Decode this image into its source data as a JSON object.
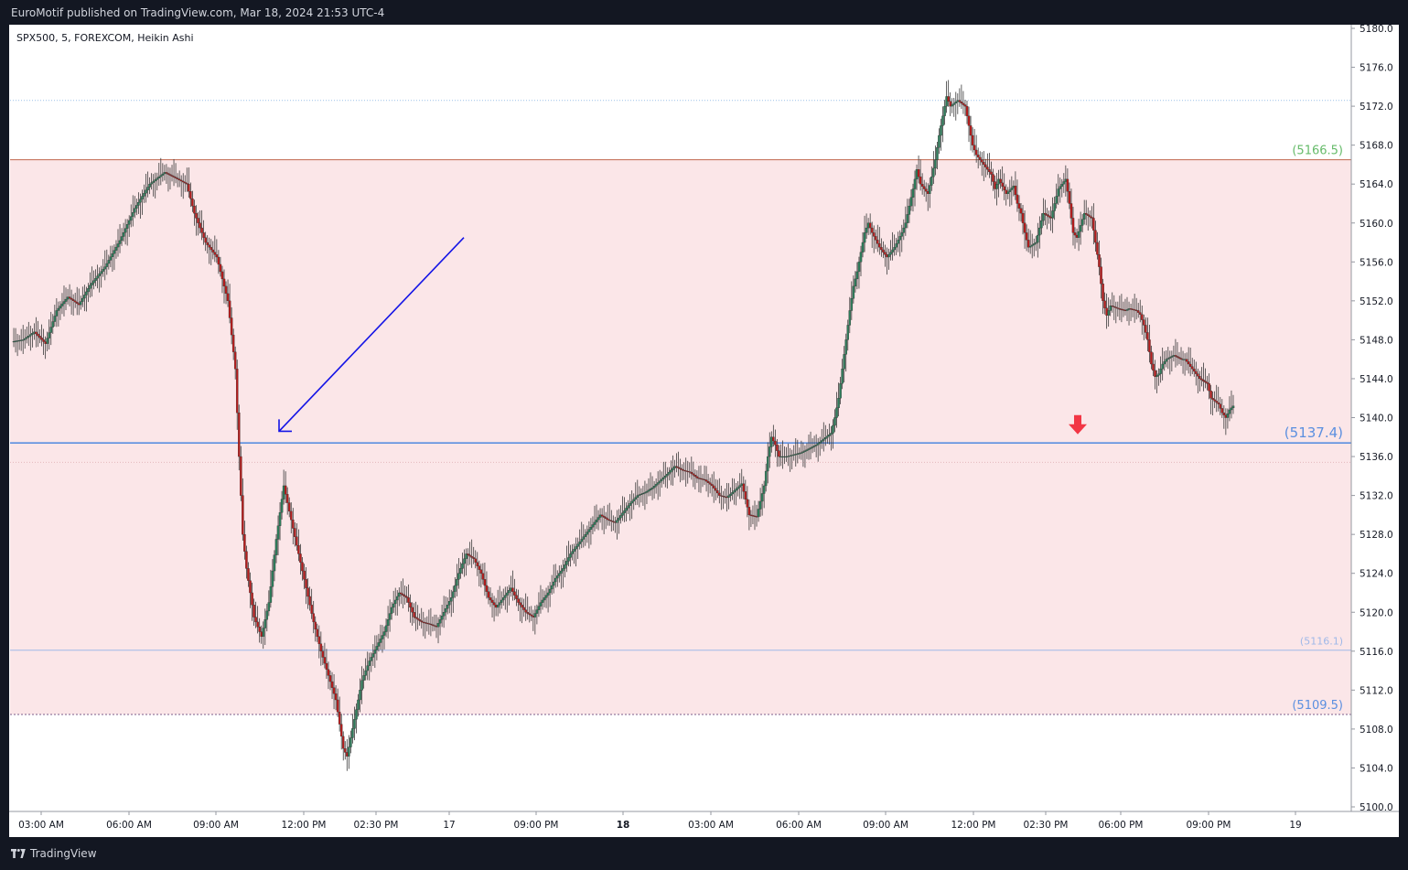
{
  "header": {
    "published_text": "EuroMotif published on TradingView.com, Mar 18, 2024 21:53 UTC-4"
  },
  "chart": {
    "symbol_label": "SPX500, 5, FOREXCOM, Heikin Ashi"
  },
  "footer": {
    "brand_name": "TradingView",
    "brand_icon": "tradingview-logo-icon"
  },
  "colors": {
    "up": "#26a69a",
    "up_body": "#2e7d5b",
    "down": "#ef5350",
    "down_body": "#b71c1c",
    "zone_fill": "#fbe6e8",
    "level_blue": "#5b8fe0",
    "level_green": "#66bb6a",
    "arrow_blue": "#1414e6",
    "marker_red": "#f23645",
    "background_dark": "#131722"
  },
  "chart_data": {
    "type": "candlestick",
    "subtype": "Heikin Ashi",
    "ylim": [
      5100,
      5180
    ],
    "yticks": [
      "5180.0",
      "5176.0",
      "5172.0",
      "5168.0",
      "5164.0",
      "5160.0",
      "5156.0",
      "5152.0",
      "5148.0",
      "5144.0",
      "5140.0",
      "5136.0",
      "5132.0",
      "5128.0",
      "5124.0",
      "5120.0",
      "5116.0",
      "5112.0",
      "5108.0",
      "5104.0",
      "5100.0"
    ],
    "xticks": [
      {
        "label": "03:00 AM",
        "bold": false
      },
      {
        "label": "06:00 AM",
        "bold": false
      },
      {
        "label": "09:00 AM",
        "bold": false
      },
      {
        "label": "12:00 PM",
        "bold": false
      },
      {
        "label": "02:30 PM",
        "bold": false
      },
      {
        "label": "17",
        "bold": false
      },
      {
        "label": "09:00 PM",
        "bold": false
      },
      {
        "label": "18",
        "bold": true
      },
      {
        "label": "03:00 AM",
        "bold": false
      },
      {
        "label": "06:00 AM",
        "bold": false
      },
      {
        "label": "09:00 AM",
        "bold": false
      },
      {
        "label": "12:00 PM",
        "bold": false
      },
      {
        "label": "02:30 PM",
        "bold": false
      },
      {
        "label": "06:00 PM",
        "bold": false
      },
      {
        "label": "09:00 PM",
        "bold": false
      },
      {
        "label": "19",
        "bold": false
      }
    ],
    "zone": {
      "top": 5166.5,
      "bottom": 5109.5
    },
    "levels": [
      {
        "price": 5166.5,
        "label": "(5166.5)",
        "color": "#66bb6a",
        "style": "solid-thin"
      },
      {
        "price": 5137.4,
        "label": "(5137.4)",
        "color": "#5b8fe0",
        "style": "solid"
      },
      {
        "price": 5116.1,
        "label": "(5116.1)",
        "color": "#9fb8e8",
        "style": "solid-thin"
      },
      {
        "price": 5109.5,
        "label": "(5109.5)",
        "color": "#5b8fe0",
        "style": "dotted"
      }
    ],
    "reference_lines": [
      5172.6,
      5135.4
    ],
    "price_path": [
      [
        0,
        5147.8
      ],
      [
        6,
        5148.0
      ],
      [
        12,
        5148.8
      ],
      [
        18,
        5147.6
      ],
      [
        24,
        5151.0
      ],
      [
        30,
        5152.4
      ],
      [
        36,
        5151.6
      ],
      [
        42,
        5153.6
      ],
      [
        50,
        5155.5
      ],
      [
        58,
        5158.2
      ],
      [
        66,
        5161.5
      ],
      [
        74,
        5164.0
      ],
      [
        82,
        5165.2
      ],
      [
        88,
        5164.6
      ],
      [
        94,
        5164.0
      ],
      [
        98,
        5161.0
      ],
      [
        104,
        5158.0
      ],
      [
        110,
        5156.5
      ],
      [
        116,
        5152.0
      ],
      [
        120,
        5145.0
      ],
      [
        122,
        5136.0
      ],
      [
        124,
        5128.0
      ],
      [
        126,
        5124.5
      ],
      [
        130,
        5119.5
      ],
      [
        134,
        5117.5
      ],
      [
        138,
        5121.0
      ],
      [
        142,
        5127.5
      ],
      [
        146,
        5133.0
      ],
      [
        150,
        5129.5
      ],
      [
        154,
        5126.0
      ],
      [
        158,
        5122.5
      ],
      [
        162,
        5119.0
      ],
      [
        166,
        5116.0
      ],
      [
        170,
        5113.5
      ],
      [
        174,
        5111.0
      ],
      [
        178,
        5106.0
      ],
      [
        180,
        5105.2
      ],
      [
        184,
        5109.0
      ],
      [
        188,
        5113.0
      ],
      [
        192,
        5115.0
      ],
      [
        196,
        5116.5
      ],
      [
        200,
        5118.0
      ],
      [
        204,
        5120.5
      ],
      [
        208,
        5122.0
      ],
      [
        212,
        5121.5
      ],
      [
        216,
        5119.5
      ],
      [
        220,
        5119.0
      ],
      [
        224,
        5118.8
      ],
      [
        228,
        5118.5
      ],
      [
        232,
        5120.0
      ],
      [
        236,
        5121.5
      ],
      [
        240,
        5124.0
      ],
      [
        244,
        5126.0
      ],
      [
        248,
        5125.5
      ],
      [
        252,
        5124.0
      ],
      [
        256,
        5121.5
      ],
      [
        260,
        5120.5
      ],
      [
        264,
        5121.5
      ],
      [
        268,
        5122.5
      ],
      [
        272,
        5121.0
      ],
      [
        276,
        5120.0
      ],
      [
        280,
        5119.5
      ],
      [
        284,
        5121.0
      ],
      [
        288,
        5122.0
      ],
      [
        292,
        5123.5
      ],
      [
        296,
        5124.5
      ],
      [
        300,
        5126.0
      ],
      [
        304,
        5127.0
      ],
      [
        308,
        5128.0
      ],
      [
        312,
        5129.0
      ],
      [
        316,
        5130.0
      ],
      [
        320,
        5129.5
      ],
      [
        324,
        5129.2
      ],
      [
        328,
        5130.2
      ],
      [
        332,
        5131.2
      ],
      [
        336,
        5132.0
      ],
      [
        340,
        5132.3
      ],
      [
        344,
        5132.8
      ],
      [
        348,
        5133.5
      ],
      [
        352,
        5134.2
      ],
      [
        356,
        5135.0
      ],
      [
        360,
        5134.6
      ],
      [
        364,
        5134.4
      ],
      [
        368,
        5133.8
      ],
      [
        372,
        5133.6
      ],
      [
        376,
        5133.0
      ],
      [
        380,
        5132.0
      ],
      [
        384,
        5131.8
      ],
      [
        388,
        5132.5
      ],
      [
        392,
        5133.2
      ],
      [
        396,
        5130.0
      ],
      [
        400,
        5129.8
      ],
      [
        404,
        5133.0
      ],
      [
        406,
        5136.0
      ],
      [
        408,
        5138.0
      ],
      [
        410,
        5137.2
      ],
      [
        412,
        5136.0
      ],
      [
        416,
        5136.0
      ],
      [
        420,
        5136.2
      ],
      [
        424,
        5136.4
      ],
      [
        428,
        5136.8
      ],
      [
        432,
        5137.2
      ],
      [
        436,
        5137.8
      ],
      [
        440,
        5138.4
      ],
      [
        442,
        5140.0
      ],
      [
        444,
        5142.0
      ],
      [
        446,
        5145.0
      ],
      [
        448,
        5148.0
      ],
      [
        450,
        5151.0
      ],
      [
        452,
        5153.5
      ],
      [
        454,
        5155.0
      ],
      [
        456,
        5157.0
      ],
      [
        458,
        5159.0
      ],
      [
        460,
        5160.0
      ],
      [
        462,
        5159.0
      ],
      [
        466,
        5157.5
      ],
      [
        470,
        5156.5
      ],
      [
        474,
        5157.5
      ],
      [
        478,
        5159.0
      ],
      [
        480,
        5160.0
      ],
      [
        484,
        5163.5
      ],
      [
        486,
        5165.5
      ],
      [
        488,
        5164.0
      ],
      [
        492,
        5163.0
      ],
      [
        496,
        5166.5
      ],
      [
        498,
        5169.0
      ],
      [
        500,
        5171.0
      ],
      [
        502,
        5173.0
      ],
      [
        504,
        5172.0
      ],
      [
        508,
        5172.6
      ],
      [
        512,
        5172.0
      ],
      [
        514,
        5170.0
      ],
      [
        516,
        5168.0
      ],
      [
        518,
        5167.0
      ],
      [
        522,
        5166.0
      ],
      [
        526,
        5165.0
      ],
      [
        528,
        5163.5
      ],
      [
        530,
        5164.5
      ],
      [
        534,
        5163.0
      ],
      [
        538,
        5163.8
      ],
      [
        540,
        5162.0
      ],
      [
        542,
        5161.0
      ],
      [
        544,
        5159.0
      ],
      [
        546,
        5157.5
      ],
      [
        550,
        5158.0
      ],
      [
        552,
        5159.5
      ],
      [
        554,
        5161.0
      ],
      [
        558,
        5160.5
      ],
      [
        560,
        5162.0
      ],
      [
        562,
        5163.5
      ],
      [
        566,
        5164.5
      ],
      [
        568,
        5162.0
      ],
      [
        570,
        5159.0
      ],
      [
        572,
        5158.5
      ],
      [
        576,
        5161.0
      ],
      [
        580,
        5160.5
      ],
      [
        582,
        5158.0
      ],
      [
        584,
        5155.5
      ],
      [
        586,
        5152.0
      ],
      [
        588,
        5150.5
      ],
      [
        590,
        5151.5
      ],
      [
        594,
        5151.2
      ],
      [
        598,
        5151.0
      ],
      [
        600,
        5151.2
      ],
      [
        604,
        5151.0
      ],
      [
        606,
        5150.6
      ],
      [
        608,
        5149.5
      ],
      [
        610,
        5148.0
      ],
      [
        612,
        5145.5
      ],
      [
        614,
        5144.2
      ],
      [
        616,
        5144.5
      ],
      [
        618,
        5145.5
      ],
      [
        620,
        5146.0
      ],
      [
        624,
        5146.4
      ],
      [
        628,
        5146.0
      ],
      [
        630,
        5146.0
      ],
      [
        634,
        5145.0
      ],
      [
        638,
        5144.0
      ],
      [
        642,
        5143.5
      ],
      [
        644,
        5142.0
      ],
      [
        648,
        5141.4
      ],
      [
        650,
        5140.5
      ],
      [
        652,
        5140.0
      ],
      [
        654,
        5140.8
      ],
      [
        656,
        5141.2
      ]
    ],
    "annotations": [
      {
        "type": "arrow",
        "color": "#1414e6",
        "from_price": 5158.5,
        "to_price": 5138.6,
        "direction": "down-left"
      },
      {
        "type": "marker",
        "shape": "down-arrow",
        "color": "#f23645",
        "price": 5138.0
      }
    ]
  }
}
